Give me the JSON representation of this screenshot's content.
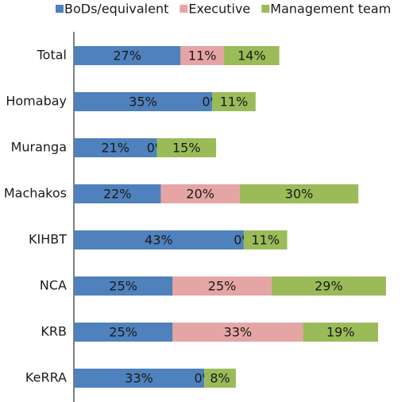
{
  "chart_data": {
    "type": "stacked-bar-horizontal",
    "categories": [
      "Total",
      "Homabay",
      "Muranga",
      "Machakos",
      "KIHBT",
      "NCA",
      "KRB",
      "KeRRA"
    ],
    "series": [
      {
        "name": "BoDs/equivalent",
        "color": "#4f81bd",
        "values": [
          27,
          35,
          21,
          22,
          43,
          25,
          25,
          33
        ],
        "value_labels": [
          "27%",
          "35%",
          "21%",
          "22%",
          "43%",
          "25%",
          "25%",
          "33%"
        ]
      },
      {
        "name": "Executive",
        "color": "#e6a5a5",
        "values": [
          11,
          0,
          0,
          20,
          0,
          25,
          33,
          0
        ],
        "value_labels": [
          "11%",
          "0%",
          "0%",
          "20%",
          "0%",
          "25%",
          "33%",
          "0%"
        ]
      },
      {
        "name": "Management team",
        "color": "#9bbb59",
        "values": [
          14,
          11,
          15,
          30,
          11,
          29,
          19,
          8
        ],
        "value_labels": [
          "14%",
          "11%",
          "15%",
          "30%",
          "11%",
          "29%",
          "19%",
          "8%"
        ]
      }
    ],
    "legend": "top"
  }
}
